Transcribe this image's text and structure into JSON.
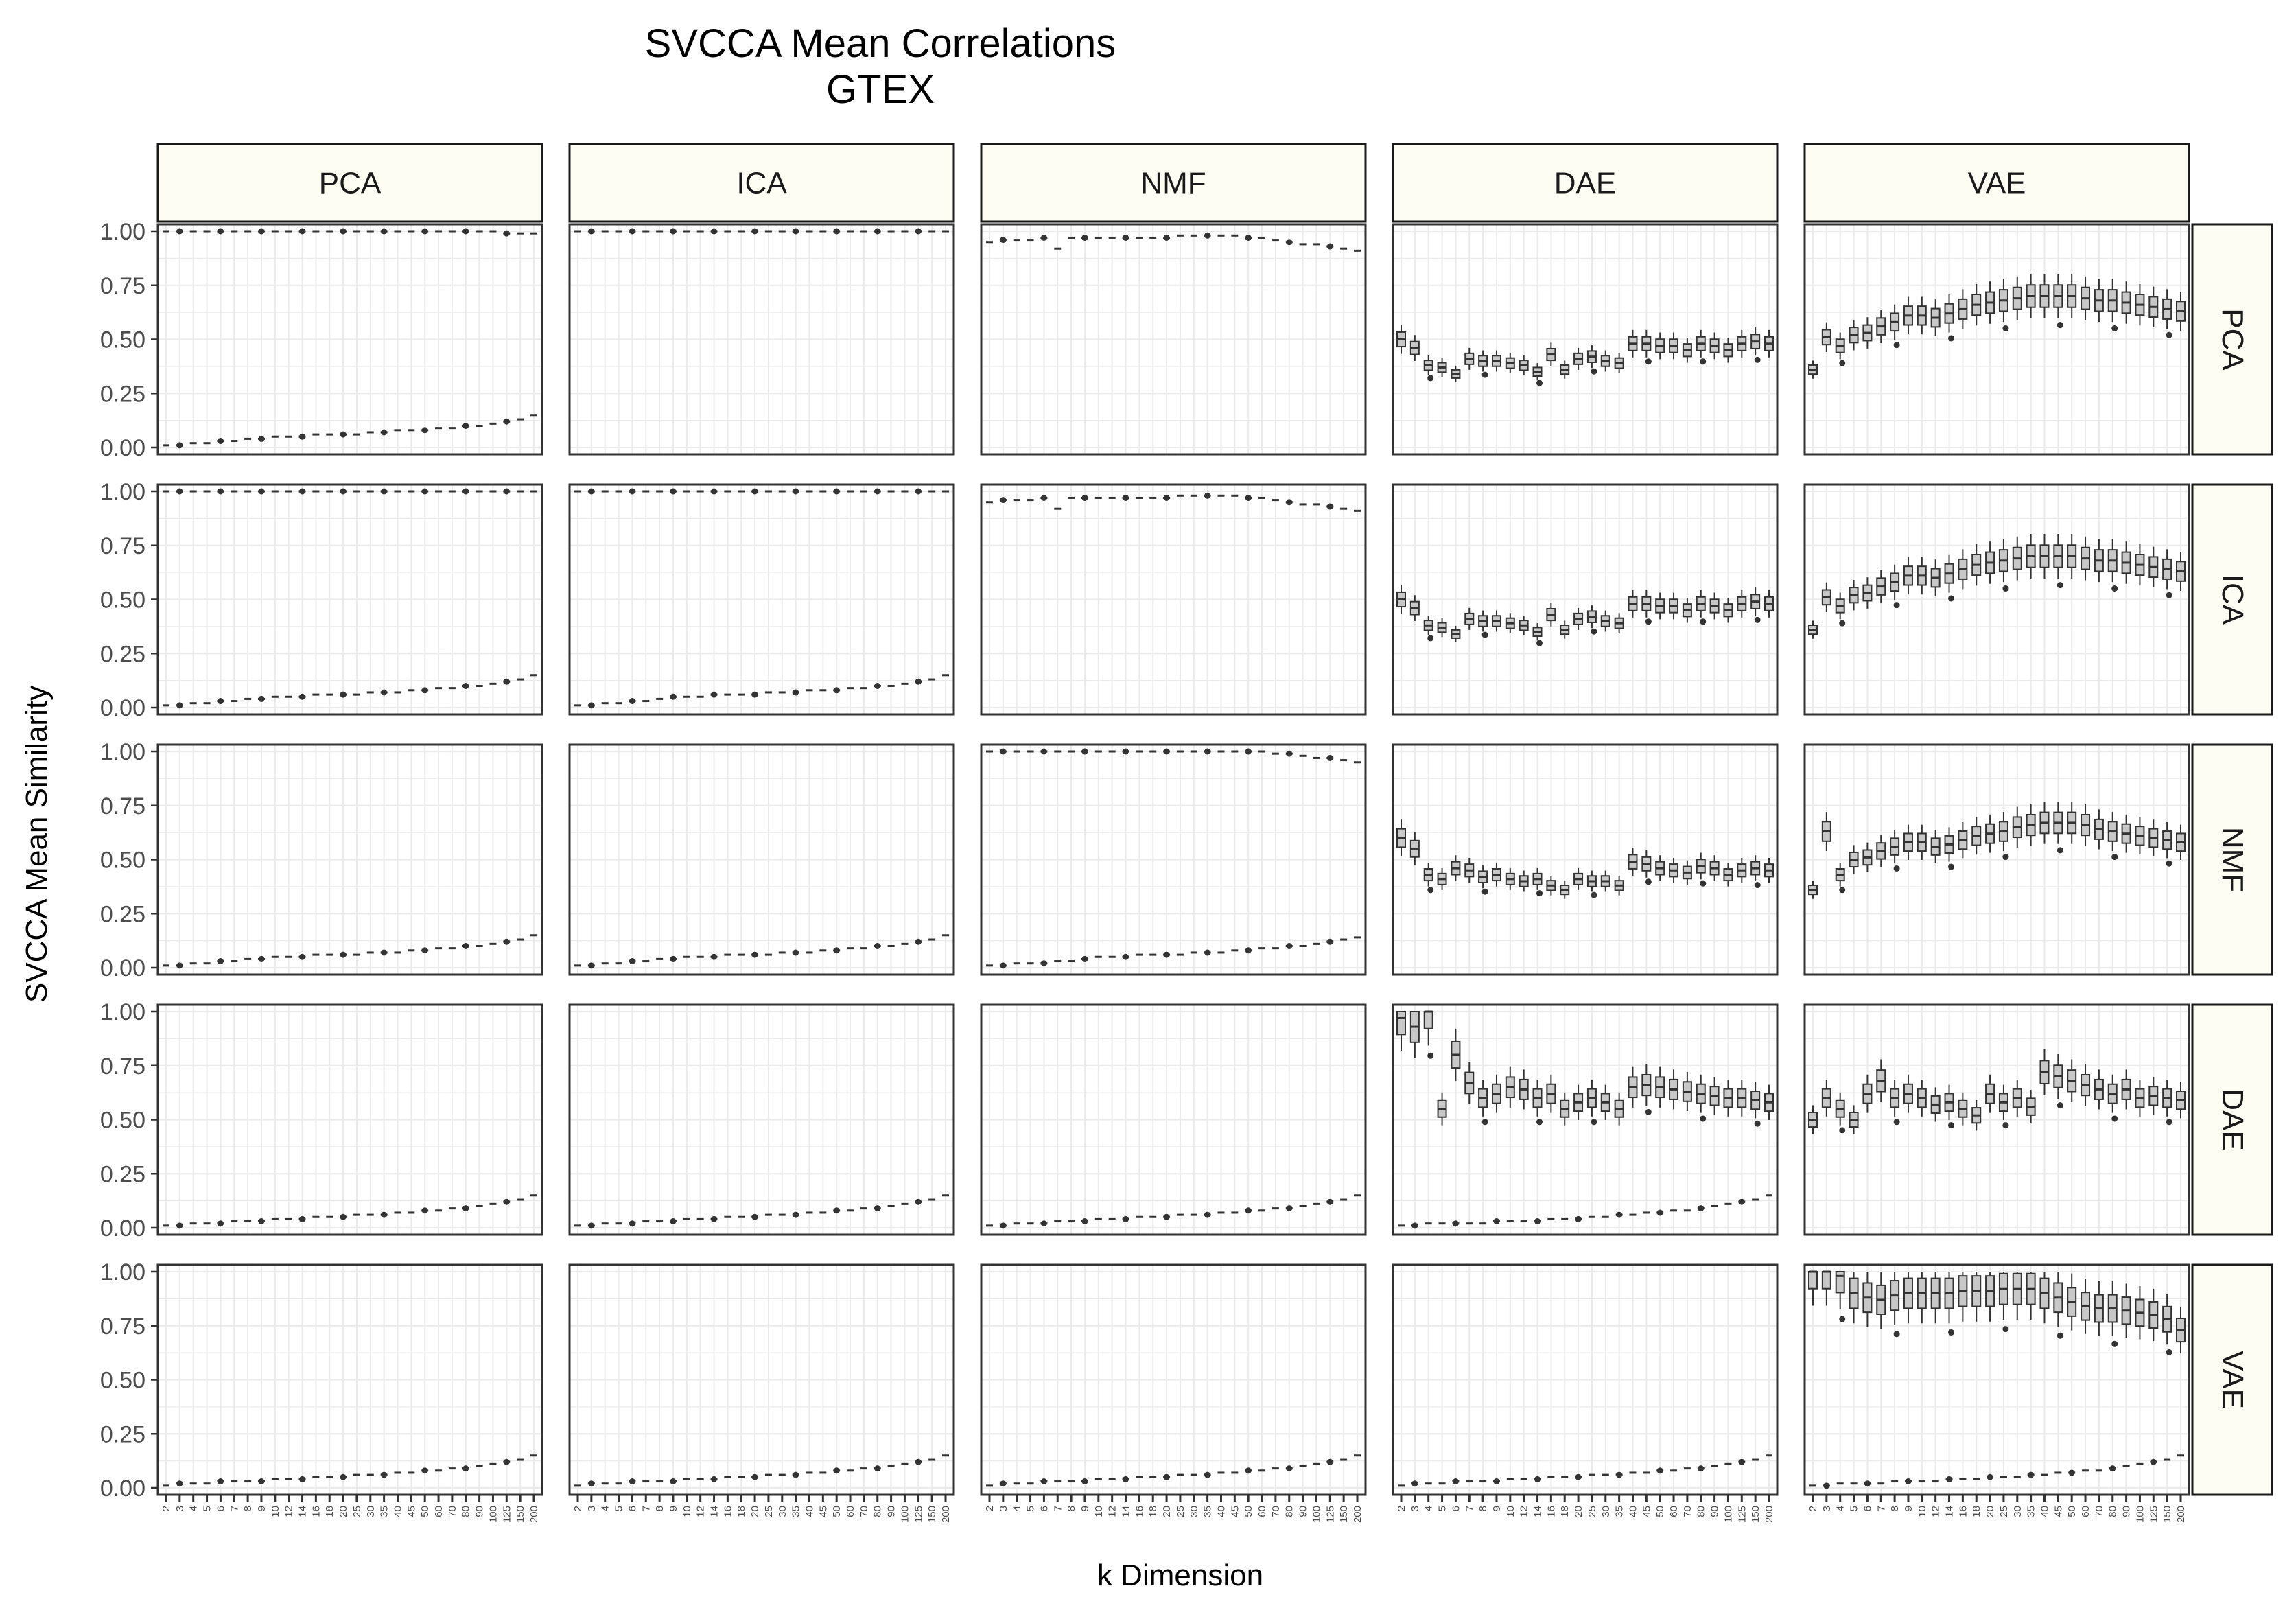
{
  "chart_data": {
    "type": "boxplot",
    "title": "SVCCA Mean Correlations",
    "subtitle": "GTEX",
    "xlabel": "k Dimension",
    "ylabel": "SVCCA Mean Similarity",
    "ylim": [
      0,
      1
    ],
    "yticks": [
      "0.00",
      "0.25",
      "0.50",
      "0.75",
      "1.00"
    ],
    "grid": true,
    "legend": "none",
    "columns": [
      "PCA",
      "ICA",
      "NMF",
      "DAE",
      "VAE"
    ],
    "rows": [
      "PCA",
      "ICA",
      "NMF",
      "DAE",
      "VAE"
    ],
    "k": [
      "2",
      "3",
      "4",
      "5",
      "6",
      "7",
      "8",
      "9",
      "10",
      "12",
      "14",
      "16",
      "18",
      "20",
      "25",
      "30",
      "35",
      "40",
      "45",
      "50",
      "60",
      "70",
      "80",
      "90",
      "100",
      "125",
      "150",
      "200"
    ],
    "colors": {
      "strip_fill": "#fdfdf3",
      "box_fill": "#c8c8c8",
      "point": "#333333",
      "grid": "#ebebeb",
      "panel_border": "#333333"
    },
    "panels": [
      {
        "row": "PCA",
        "col": "PCA",
        "upper": [
          1.0,
          1.0,
          1.0,
          1.0,
          1.0,
          1.0,
          1.0,
          1.0,
          1.0,
          1.0,
          1.0,
          1.0,
          1.0,
          1.0,
          1.0,
          1.0,
          1.0,
          1.0,
          1.0,
          1.0,
          1.0,
          1.0,
          1.0,
          1.0,
          1.0,
          0.99,
          0.99,
          0.99
        ],
        "lower": [
          0.01,
          0.01,
          0.02,
          0.02,
          0.03,
          0.03,
          0.04,
          0.04,
          0.05,
          0.05,
          0.05,
          0.06,
          0.06,
          0.06,
          0.06,
          0.07,
          0.07,
          0.08,
          0.08,
          0.08,
          0.09,
          0.09,
          0.1,
          0.1,
          0.11,
          0.12,
          0.13,
          0.15
        ]
      },
      {
        "row": "PCA",
        "col": "ICA",
        "upper": [
          1.0,
          1.0,
          1.0,
          1.0,
          1.0,
          1.0,
          1.0,
          1.0,
          1.0,
          1.0,
          1.0,
          1.0,
          1.0,
          1.0,
          1.0,
          1.0,
          1.0,
          1.0,
          1.0,
          1.0,
          1.0,
          1.0,
          1.0,
          1.0,
          1.0,
          1.0,
          1.0,
          1.0
        ]
      },
      {
        "row": "PCA",
        "col": "NMF",
        "upper": [
          0.95,
          0.96,
          0.96,
          0.96,
          0.97,
          0.92,
          0.97,
          0.97,
          0.97,
          0.97,
          0.97,
          0.97,
          0.97,
          0.97,
          0.98,
          0.98,
          0.98,
          0.98,
          0.98,
          0.97,
          0.97,
          0.96,
          0.95,
          0.94,
          0.94,
          0.93,
          0.92,
          0.91
        ]
      },
      {
        "row": "PCA",
        "col": "DAE",
        "median": [
          0.5,
          0.46,
          0.38,
          0.37,
          0.34,
          0.41,
          0.4,
          0.4,
          0.39,
          0.38,
          0.35,
          0.43,
          0.36,
          0.41,
          0.42,
          0.4,
          0.39,
          0.48,
          0.48,
          0.47,
          0.47,
          0.45,
          0.48,
          0.47,
          0.45,
          0.48,
          0.49,
          0.48
        ]
      },
      {
        "row": "PCA",
        "col": "VAE",
        "median": [
          0.36,
          0.51,
          0.47,
          0.52,
          0.53,
          0.56,
          0.58,
          0.61,
          0.61,
          0.6,
          0.62,
          0.64,
          0.66,
          0.67,
          0.68,
          0.69,
          0.7,
          0.7,
          0.7,
          0.7,
          0.69,
          0.68,
          0.68,
          0.67,
          0.66,
          0.65,
          0.64,
          0.63
        ]
      },
      {
        "row": "ICA",
        "col": "PCA",
        "upper": [
          1.0,
          1.0,
          1.0,
          1.0,
          1.0,
          1.0,
          1.0,
          1.0,
          1.0,
          1.0,
          1.0,
          1.0,
          1.0,
          1.0,
          1.0,
          1.0,
          1.0,
          1.0,
          1.0,
          1.0,
          1.0,
          1.0,
          1.0,
          1.0,
          1.0,
          1.0,
          1.0,
          1.0
        ],
        "lower": [
          0.01,
          0.01,
          0.02,
          0.02,
          0.03,
          0.03,
          0.04,
          0.04,
          0.05,
          0.05,
          0.05,
          0.06,
          0.06,
          0.06,
          0.06,
          0.07,
          0.07,
          0.07,
          0.08,
          0.08,
          0.09,
          0.09,
          0.1,
          0.1,
          0.11,
          0.12,
          0.13,
          0.15
        ]
      },
      {
        "row": "ICA",
        "col": "ICA",
        "upper": [
          1.0,
          1.0,
          1.0,
          1.0,
          1.0,
          1.0,
          1.0,
          1.0,
          1.0,
          1.0,
          1.0,
          1.0,
          1.0,
          1.0,
          1.0,
          1.0,
          1.0,
          1.0,
          1.0,
          1.0,
          1.0,
          1.0,
          1.0,
          1.0,
          1.0,
          1.0,
          1.0,
          1.0
        ],
        "lower": [
          0.01,
          0.01,
          0.02,
          0.02,
          0.03,
          0.03,
          0.04,
          0.05,
          0.05,
          0.05,
          0.06,
          0.06,
          0.06,
          0.06,
          0.07,
          0.07,
          0.07,
          0.08,
          0.08,
          0.08,
          0.09,
          0.09,
          0.1,
          0.1,
          0.11,
          0.12,
          0.13,
          0.15
        ]
      },
      {
        "row": "ICA",
        "col": "NMF",
        "upper": [
          0.95,
          0.96,
          0.96,
          0.96,
          0.97,
          0.92,
          0.97,
          0.97,
          0.97,
          0.97,
          0.97,
          0.97,
          0.97,
          0.97,
          0.98,
          0.98,
          0.98,
          0.98,
          0.98,
          0.97,
          0.97,
          0.96,
          0.95,
          0.94,
          0.94,
          0.93,
          0.92,
          0.91
        ]
      },
      {
        "row": "ICA",
        "col": "DAE",
        "median": [
          0.5,
          0.46,
          0.38,
          0.37,
          0.34,
          0.41,
          0.4,
          0.4,
          0.39,
          0.38,
          0.35,
          0.43,
          0.36,
          0.41,
          0.42,
          0.4,
          0.39,
          0.48,
          0.48,
          0.47,
          0.47,
          0.45,
          0.48,
          0.47,
          0.45,
          0.48,
          0.49,
          0.48
        ]
      },
      {
        "row": "ICA",
        "col": "VAE",
        "median": [
          0.36,
          0.51,
          0.47,
          0.52,
          0.53,
          0.56,
          0.58,
          0.61,
          0.61,
          0.6,
          0.62,
          0.64,
          0.66,
          0.67,
          0.68,
          0.69,
          0.7,
          0.7,
          0.7,
          0.7,
          0.69,
          0.68,
          0.68,
          0.67,
          0.66,
          0.65,
          0.64,
          0.63
        ]
      },
      {
        "row": "NMF",
        "col": "PCA",
        "lower": [
          0.01,
          0.01,
          0.02,
          0.02,
          0.03,
          0.03,
          0.04,
          0.04,
          0.05,
          0.05,
          0.05,
          0.06,
          0.06,
          0.06,
          0.06,
          0.07,
          0.07,
          0.07,
          0.08,
          0.08,
          0.09,
          0.09,
          0.1,
          0.1,
          0.11,
          0.12,
          0.13,
          0.15
        ]
      },
      {
        "row": "NMF",
        "col": "ICA",
        "lower": [
          0.01,
          0.01,
          0.02,
          0.02,
          0.03,
          0.03,
          0.04,
          0.04,
          0.05,
          0.05,
          0.05,
          0.06,
          0.06,
          0.06,
          0.06,
          0.07,
          0.07,
          0.07,
          0.08,
          0.08,
          0.09,
          0.09,
          0.1,
          0.1,
          0.11,
          0.12,
          0.13,
          0.15
        ]
      },
      {
        "row": "NMF",
        "col": "NMF",
        "upper": [
          1.0,
          1.0,
          1.0,
          1.0,
          1.0,
          1.0,
          1.0,
          1.0,
          1.0,
          1.0,
          1.0,
          1.0,
          1.0,
          1.0,
          1.0,
          1.0,
          1.0,
          1.0,
          1.0,
          1.0,
          1.0,
          0.99,
          0.99,
          0.98,
          0.97,
          0.97,
          0.96,
          0.95
        ],
        "lower": [
          0.01,
          0.01,
          0.02,
          0.02,
          0.02,
          0.03,
          0.03,
          0.04,
          0.05,
          0.05,
          0.05,
          0.06,
          0.06,
          0.06,
          0.06,
          0.07,
          0.07,
          0.07,
          0.08,
          0.08,
          0.09,
          0.09,
          0.1,
          0.1,
          0.11,
          0.12,
          0.13,
          0.14
        ]
      },
      {
        "row": "NMF",
        "col": "DAE",
        "median": [
          0.6,
          0.55,
          0.43,
          0.41,
          0.46,
          0.45,
          0.42,
          0.43,
          0.41,
          0.4,
          0.41,
          0.38,
          0.36,
          0.41,
          0.4,
          0.4,
          0.38,
          0.49,
          0.48,
          0.46,
          0.45,
          0.44,
          0.47,
          0.46,
          0.43,
          0.45,
          0.46,
          0.45
        ]
      },
      {
        "row": "NMF",
        "col": "VAE",
        "median": [
          0.36,
          0.63,
          0.43,
          0.5,
          0.51,
          0.54,
          0.56,
          0.58,
          0.58,
          0.56,
          0.57,
          0.59,
          0.61,
          0.62,
          0.63,
          0.65,
          0.66,
          0.67,
          0.67,
          0.67,
          0.66,
          0.64,
          0.63,
          0.62,
          0.61,
          0.6,
          0.59,
          0.58
        ]
      },
      {
        "row": "DAE",
        "col": "PCA",
        "lower": [
          0.01,
          0.01,
          0.02,
          0.02,
          0.02,
          0.03,
          0.03,
          0.03,
          0.04,
          0.04,
          0.04,
          0.05,
          0.05,
          0.05,
          0.06,
          0.06,
          0.06,
          0.07,
          0.07,
          0.08,
          0.08,
          0.09,
          0.09,
          0.1,
          0.11,
          0.12,
          0.13,
          0.15
        ]
      },
      {
        "row": "DAE",
        "col": "ICA",
        "lower": [
          0.01,
          0.01,
          0.02,
          0.02,
          0.02,
          0.03,
          0.03,
          0.03,
          0.04,
          0.04,
          0.04,
          0.05,
          0.05,
          0.05,
          0.06,
          0.06,
          0.06,
          0.07,
          0.07,
          0.08,
          0.08,
          0.09,
          0.09,
          0.1,
          0.11,
          0.12,
          0.13,
          0.15
        ]
      },
      {
        "row": "DAE",
        "col": "NMF",
        "lower": [
          0.01,
          0.01,
          0.02,
          0.02,
          0.02,
          0.03,
          0.03,
          0.03,
          0.04,
          0.04,
          0.04,
          0.05,
          0.05,
          0.05,
          0.06,
          0.06,
          0.06,
          0.07,
          0.07,
          0.08,
          0.08,
          0.09,
          0.09,
          0.1,
          0.11,
          0.12,
          0.13,
          0.15
        ]
      },
      {
        "row": "DAE",
        "col": "DAE",
        "median": [
          0.97,
          0.93,
          1.0,
          0.55,
          0.8,
          0.67,
          0.6,
          0.62,
          0.65,
          0.64,
          0.6,
          0.62,
          0.55,
          0.58,
          0.6,
          0.58,
          0.55,
          0.65,
          0.66,
          0.65,
          0.64,
          0.63,
          0.62,
          0.61,
          0.6,
          0.6,
          0.59,
          0.58
        ],
        "lower": [
          0.01,
          0.01,
          0.02,
          0.02,
          0.02,
          0.02,
          0.02,
          0.03,
          0.03,
          0.03,
          0.03,
          0.04,
          0.04,
          0.04,
          0.05,
          0.05,
          0.06,
          0.06,
          0.07,
          0.07,
          0.08,
          0.08,
          0.09,
          0.1,
          0.11,
          0.12,
          0.13,
          0.15
        ]
      },
      {
        "row": "DAE",
        "col": "VAE",
        "median": [
          0.5,
          0.6,
          0.55,
          0.5,
          0.62,
          0.68,
          0.6,
          0.62,
          0.6,
          0.57,
          0.58,
          0.55,
          0.52,
          0.62,
          0.58,
          0.6,
          0.56,
          0.72,
          0.7,
          0.68,
          0.66,
          0.64,
          0.62,
          0.64,
          0.6,
          0.61,
          0.6,
          0.59
        ]
      },
      {
        "row": "VAE",
        "col": "PCA",
        "lower": [
          0.01,
          0.02,
          0.02,
          0.02,
          0.03,
          0.03,
          0.03,
          0.03,
          0.04,
          0.04,
          0.04,
          0.05,
          0.05,
          0.05,
          0.06,
          0.06,
          0.06,
          0.07,
          0.07,
          0.08,
          0.08,
          0.09,
          0.09,
          0.1,
          0.11,
          0.12,
          0.13,
          0.15
        ]
      },
      {
        "row": "VAE",
        "col": "ICA",
        "lower": [
          0.01,
          0.02,
          0.02,
          0.02,
          0.03,
          0.03,
          0.03,
          0.03,
          0.04,
          0.04,
          0.04,
          0.05,
          0.05,
          0.05,
          0.06,
          0.06,
          0.06,
          0.07,
          0.07,
          0.08,
          0.08,
          0.09,
          0.09,
          0.1,
          0.11,
          0.12,
          0.13,
          0.15
        ]
      },
      {
        "row": "VAE",
        "col": "NMF",
        "lower": [
          0.01,
          0.02,
          0.02,
          0.02,
          0.03,
          0.03,
          0.03,
          0.03,
          0.04,
          0.04,
          0.04,
          0.05,
          0.05,
          0.05,
          0.06,
          0.06,
          0.06,
          0.07,
          0.07,
          0.08,
          0.08,
          0.09,
          0.09,
          0.1,
          0.11,
          0.12,
          0.13,
          0.15
        ]
      },
      {
        "row": "VAE",
        "col": "DAE",
        "lower": [
          0.01,
          0.02,
          0.02,
          0.02,
          0.03,
          0.03,
          0.03,
          0.03,
          0.04,
          0.04,
          0.04,
          0.05,
          0.05,
          0.05,
          0.06,
          0.06,
          0.06,
          0.07,
          0.07,
          0.08,
          0.08,
          0.09,
          0.09,
          0.1,
          0.11,
          0.12,
          0.13,
          0.15
        ]
      },
      {
        "row": "VAE",
        "col": "VAE",
        "median": [
          1.0,
          1.0,
          0.98,
          0.9,
          0.88,
          0.87,
          0.89,
          0.9,
          0.9,
          0.9,
          0.9,
          0.91,
          0.91,
          0.91,
          0.92,
          0.92,
          0.92,
          0.9,
          0.88,
          0.86,
          0.84,
          0.83,
          0.83,
          0.82,
          0.81,
          0.8,
          0.78,
          0.73
        ],
        "lower": [
          0.01,
          0.01,
          0.02,
          0.02,
          0.02,
          0.02,
          0.03,
          0.03,
          0.03,
          0.03,
          0.04,
          0.04,
          0.04,
          0.05,
          0.05,
          0.05,
          0.06,
          0.06,
          0.07,
          0.07,
          0.08,
          0.08,
          0.09,
          0.1,
          0.11,
          0.12,
          0.13,
          0.15
        ]
      }
    ]
  }
}
